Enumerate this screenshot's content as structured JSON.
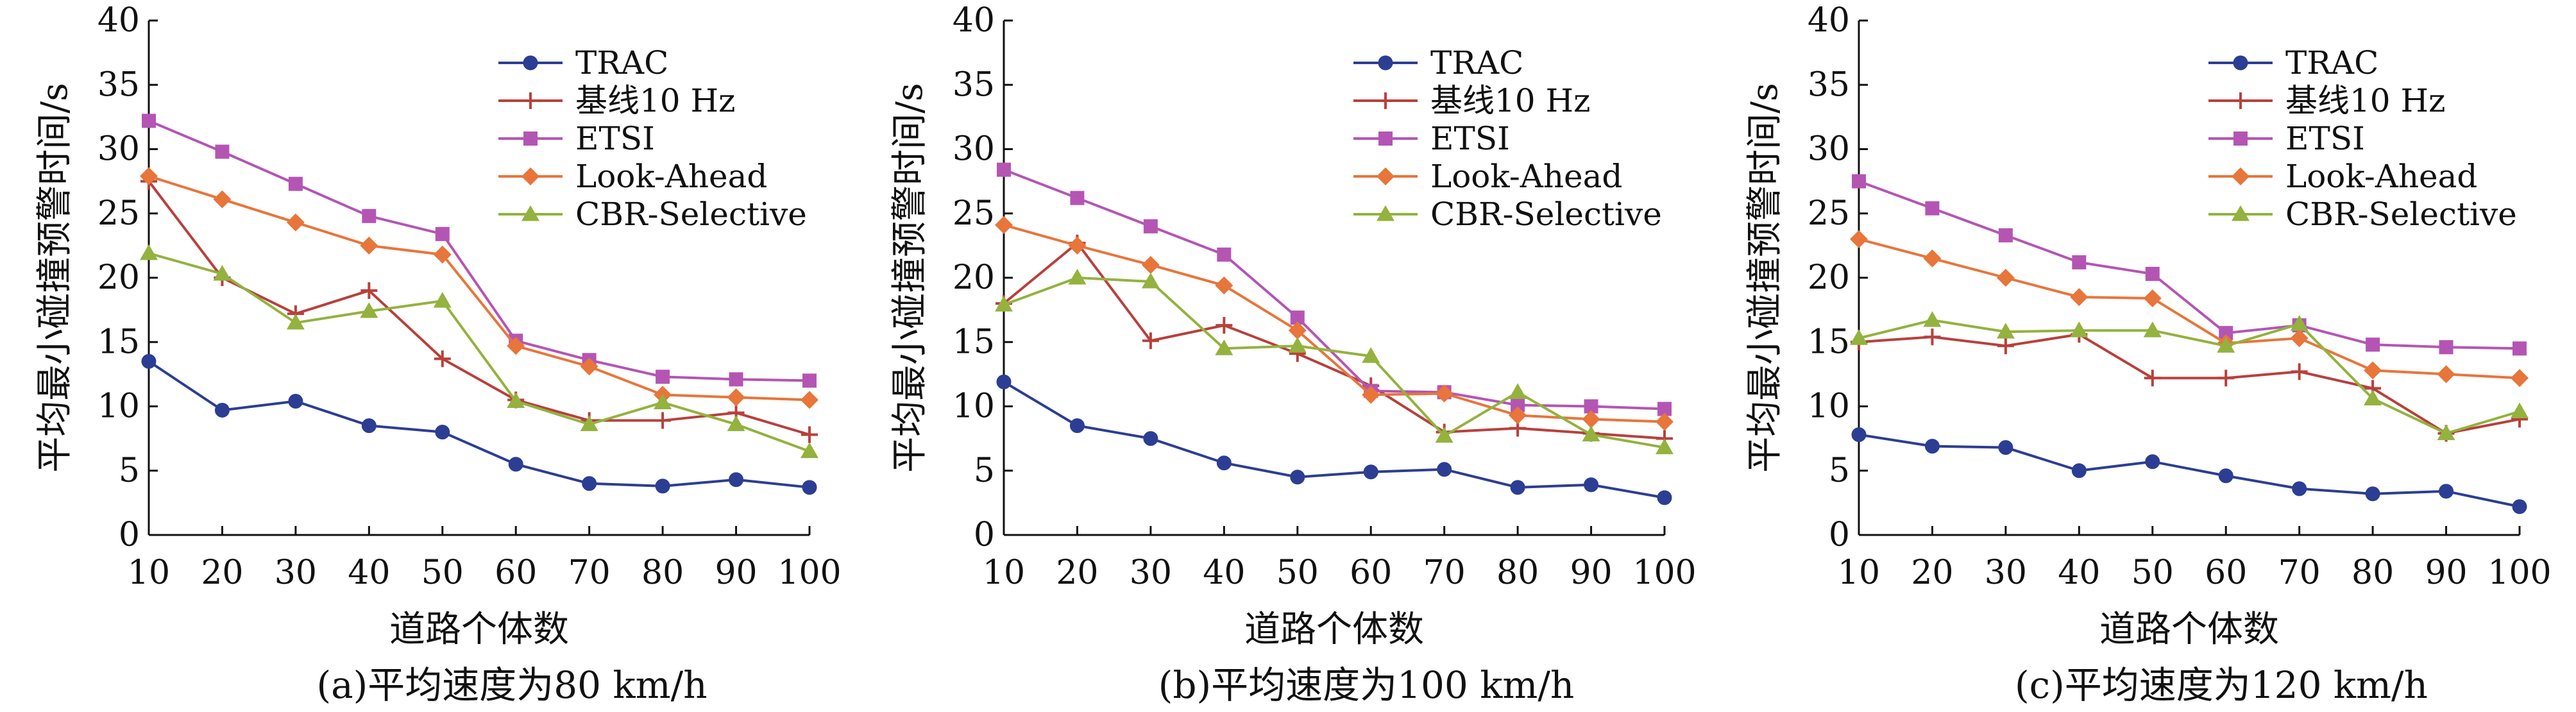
{
  "chart_data": [
    {
      "type": "line",
      "title": "",
      "caption": "(a)平均速度为80 km/h",
      "xlabel": "道路个体数",
      "ylabel": "平均最小碰撞预警时间/s",
      "ylim": [
        0,
        40
      ],
      "yticks": [
        0,
        5,
        10,
        15,
        20,
        25,
        30,
        35,
        40
      ],
      "x": [
        10,
        20,
        30,
        40,
        50,
        60,
        70,
        80,
        90,
        100
      ],
      "legend": "top-right",
      "series": [
        {
          "name": "TRAC",
          "color": "#2c3e93",
          "marker": "circle",
          "values": [
            13.5,
            9.7,
            10.4,
            8.5,
            8.0,
            5.5,
            4.0,
            3.8,
            4.3,
            3.7
          ]
        },
        {
          "name": "基线10 Hz",
          "color": "#b8403c",
          "marker": "plus",
          "values": [
            27.5,
            20.0,
            17.2,
            19.0,
            13.7,
            10.5,
            8.9,
            8.9,
            9.5,
            7.8
          ]
        },
        {
          "name": "ETSI",
          "color": "#b455b4",
          "marker": "square",
          "values": [
            32.2,
            29.8,
            27.3,
            24.8,
            23.4,
            15.1,
            13.6,
            12.3,
            12.1,
            12.0
          ]
        },
        {
          "name": "Look-Ahead",
          "color": "#e8753a",
          "marker": "diamond",
          "values": [
            27.9,
            26.1,
            24.3,
            22.5,
            21.8,
            14.7,
            13.1,
            10.9,
            10.7,
            10.5
          ]
        },
        {
          "name": "CBR-Selective",
          "color": "#93b23e",
          "marker": "triangle",
          "values": [
            21.9,
            20.3,
            16.5,
            17.4,
            18.2,
            10.4,
            8.6,
            10.3,
            8.6,
            6.5
          ]
        }
      ]
    },
    {
      "type": "line",
      "title": "",
      "caption": "(b)平均速度为100 km/h",
      "xlabel": "道路个体数",
      "ylabel": "平均最小碰撞预警时间/s",
      "ylim": [
        0,
        40
      ],
      "yticks": [
        0,
        5,
        10,
        15,
        20,
        25,
        30,
        35,
        40
      ],
      "x": [
        10,
        20,
        30,
        40,
        50,
        60,
        70,
        80,
        90,
        100
      ],
      "legend": "top-right",
      "series": [
        {
          "name": "TRAC",
          "color": "#2c3e93",
          "marker": "circle",
          "values": [
            11.9,
            8.5,
            7.5,
            5.6,
            4.5,
            4.9,
            5.1,
            3.7,
            3.9,
            2.9
          ]
        },
        {
          "name": "基线10 Hz",
          "color": "#b8403c",
          "marker": "plus",
          "values": [
            18.0,
            22.7,
            15.1,
            16.3,
            14.1,
            11.6,
            8.0,
            8.3,
            7.9,
            7.5
          ]
        },
        {
          "name": "ETSI",
          "color": "#b455b4",
          "marker": "square",
          "values": [
            28.4,
            26.2,
            24.0,
            21.8,
            16.9,
            11.2,
            11.1,
            10.1,
            10.0,
            9.8
          ]
        },
        {
          "name": "Look-Ahead",
          "color": "#e8753a",
          "marker": "diamond",
          "values": [
            24.1,
            22.5,
            21.0,
            19.4,
            15.9,
            10.9,
            11.0,
            9.3,
            9.0,
            8.8
          ]
        },
        {
          "name": "CBR-Selective",
          "color": "#93b23e",
          "marker": "triangle",
          "values": [
            17.9,
            20.0,
            19.7,
            14.5,
            14.7,
            13.9,
            7.7,
            11.1,
            7.8,
            6.8
          ]
        }
      ]
    },
    {
      "type": "line",
      "title": "",
      "caption": "(c)平均速度为120 km/h",
      "xlabel": "道路个体数",
      "ylabel": "平均最小碰撞预警时间/s",
      "ylim": [
        0,
        40
      ],
      "yticks": [
        0,
        5,
        10,
        15,
        20,
        25,
        30,
        35,
        40
      ],
      "x": [
        10,
        20,
        30,
        40,
        50,
        60,
        70,
        80,
        90,
        100
      ],
      "legend": "top-right",
      "series": [
        {
          "name": "TRAC",
          "color": "#2c3e93",
          "marker": "circle",
          "values": [
            7.8,
            6.9,
            6.8,
            5.0,
            5.7,
            4.6,
            3.6,
            3.2,
            3.4,
            2.2
          ]
        },
        {
          "name": "基线10 Hz",
          "color": "#b8403c",
          "marker": "plus",
          "values": [
            15.0,
            15.4,
            14.7,
            15.6,
            12.2,
            12.2,
            12.7,
            11.4,
            7.9,
            9.0
          ]
        },
        {
          "name": "ETSI",
          "color": "#b455b4",
          "marker": "square",
          "values": [
            27.5,
            25.4,
            23.3,
            21.2,
            20.3,
            15.7,
            16.3,
            14.8,
            14.6,
            14.5
          ]
        },
        {
          "name": "Look-Ahead",
          "color": "#e8753a",
          "marker": "diamond",
          "values": [
            23.0,
            21.5,
            20.0,
            18.5,
            18.4,
            14.9,
            15.3,
            12.8,
            12.5,
            12.2
          ]
        },
        {
          "name": "CBR-Selective",
          "color": "#93b23e",
          "marker": "triangle",
          "values": [
            15.3,
            16.7,
            15.8,
            15.9,
            15.9,
            14.7,
            16.4,
            10.6,
            7.9,
            9.6
          ]
        }
      ]
    }
  ]
}
